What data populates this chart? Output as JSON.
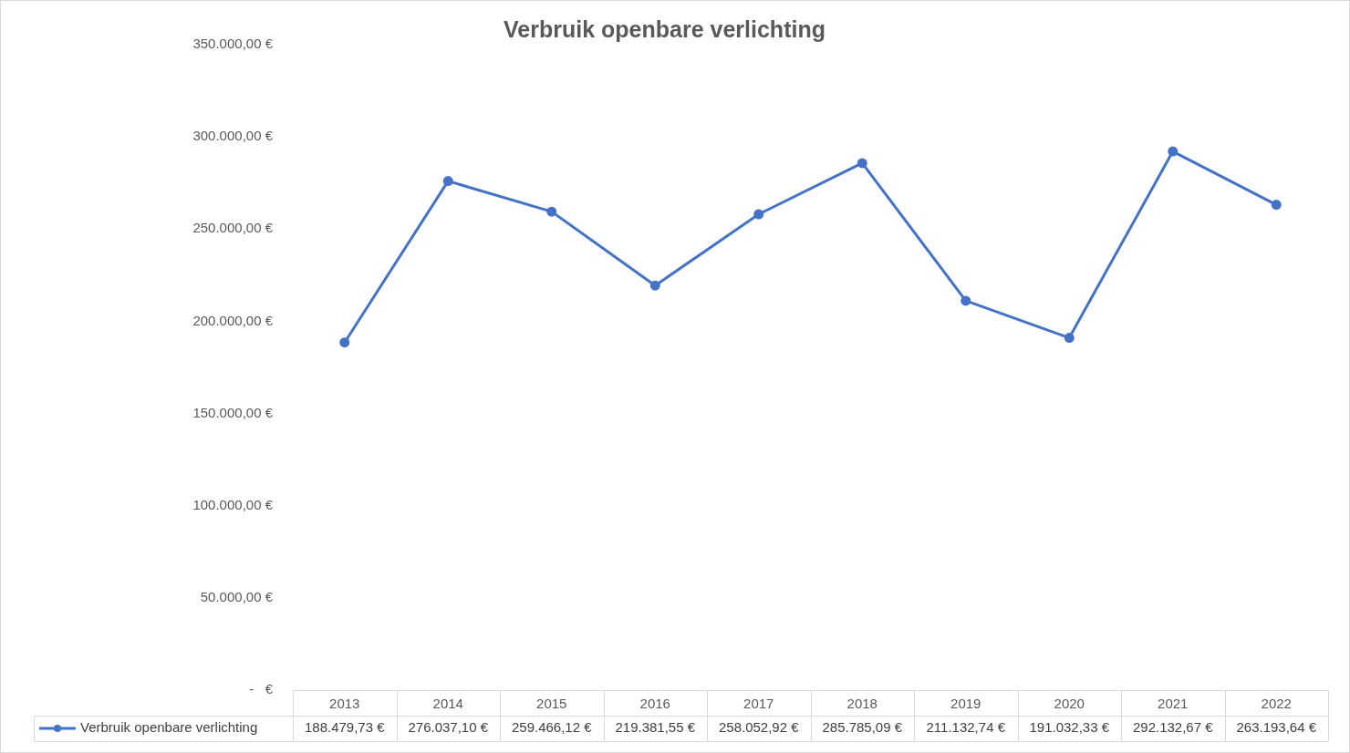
{
  "chart_data": {
    "type": "line",
    "title": "Verbruik openbare verlichting",
    "categories": [
      "2013",
      "2014",
      "2015",
      "2016",
      "2017",
      "2018",
      "2019",
      "2020",
      "2021",
      "2022"
    ],
    "series": [
      {
        "name": "Verbruik openbare verlichting",
        "color": "#4472c4",
        "values": [
          188479.73,
          276037.1,
          259466.12,
          219381.55,
          258052.92,
          285785.09,
          211132.74,
          191032.33,
          292132.67,
          263193.64
        ],
        "value_labels": [
          "188.479,73 €",
          "276.037,10 €",
          "259.466,12 €",
          "219.381,55 €",
          "258.052,92 €",
          "285.785,09 €",
          "211.132,74 €",
          "191.032,33 €",
          "292.132,67 €",
          "263.193,64 €"
        ]
      }
    ],
    "ylim": [
      0,
      350000
    ],
    "yticks": [
      {
        "value": 0,
        "label": "-   €"
      },
      {
        "value": 50000,
        "label": "50.000,00 €"
      },
      {
        "value": 100000,
        "label": "100.000,00 €"
      },
      {
        "value": 150000,
        "label": "150.000,00 €"
      },
      {
        "value": 200000,
        "label": "200.000,00 €"
      },
      {
        "value": 250000,
        "label": "250.000,00 €"
      },
      {
        "value": 300000,
        "label": "300.000,00 €"
      },
      {
        "value": 350000,
        "label": "350.000,00 €"
      }
    ],
    "grid": false,
    "legend": "bottom",
    "marker": "circle",
    "line_style": "solid"
  }
}
